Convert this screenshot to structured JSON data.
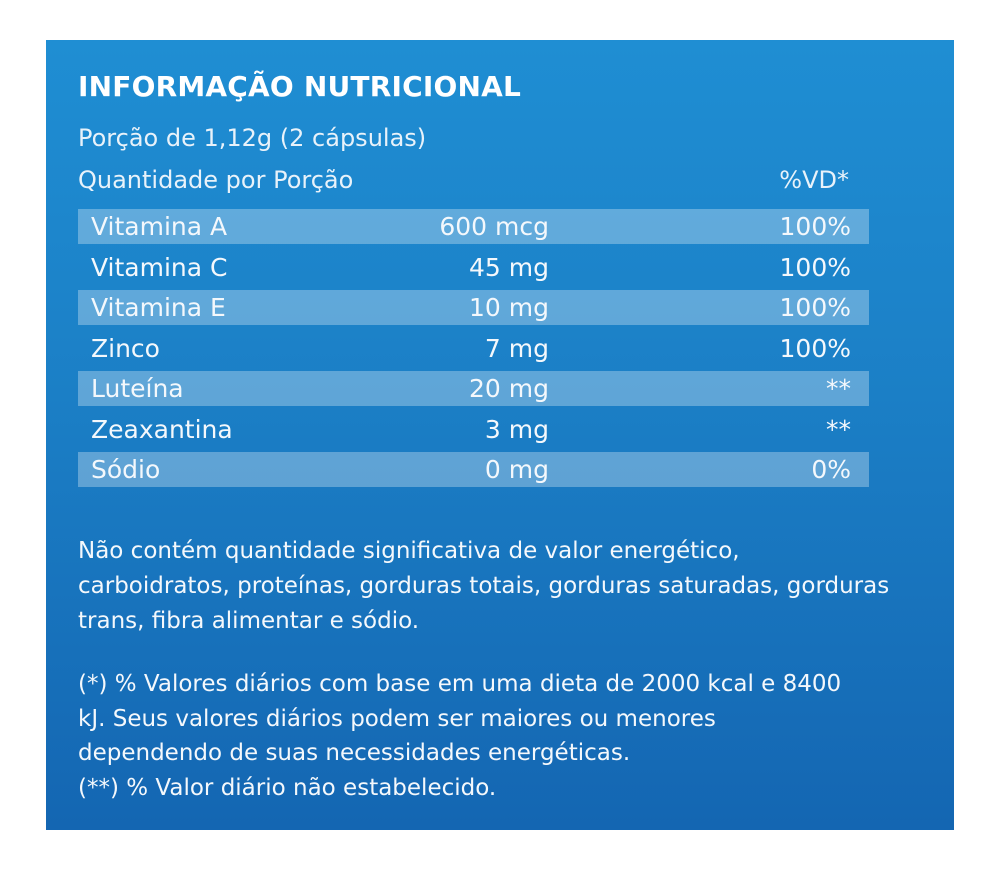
{
  "label": {
    "title": "INFORMAÇÃO NUTRICIONAL",
    "portion": "Porção de 1,12g (2 cápsulas)",
    "quantity_header": "Quantidade por Porção",
    "vd_header": "%VD*"
  },
  "rows": [
    {
      "name": "Vitamina A",
      "amount": "600 mcg",
      "vd": "100%"
    },
    {
      "name": "Vitamina C",
      "amount": "45 mg",
      "vd": "100%"
    },
    {
      "name": "Vitamina E",
      "amount": "10 mg",
      "vd": "100%"
    },
    {
      "name": "Zinco",
      "amount": "7 mg",
      "vd": "100%"
    },
    {
      "name": "Luteína",
      "amount": "20 mg",
      "vd": "**"
    },
    {
      "name": "Zeaxantina",
      "amount": "3 mg",
      "vd": "**"
    },
    {
      "name": "Sódio",
      "amount": "0 mg",
      "vd": "0%"
    }
  ],
  "note": "Não contém quantidade significativa de valor energético, carboidratos, proteínas, gorduras totais, gorduras saturadas, gorduras trans, fibra alimentar e sódio.",
  "footnotes": {
    "line1": "(*) % Valores diários com base em uma dieta de 2000 kcal e 8400",
    "line2": "kJ. Seus valores diários podem ser maiores ou menores",
    "line3": "dependendo de suas necessidades energéticas.",
    "line4": "(**) % Valor diário não estabelecido."
  },
  "colors": {
    "panel_top": "#1f8ed3",
    "panel_bottom": "#1466b2",
    "text": "#ffffff"
  }
}
